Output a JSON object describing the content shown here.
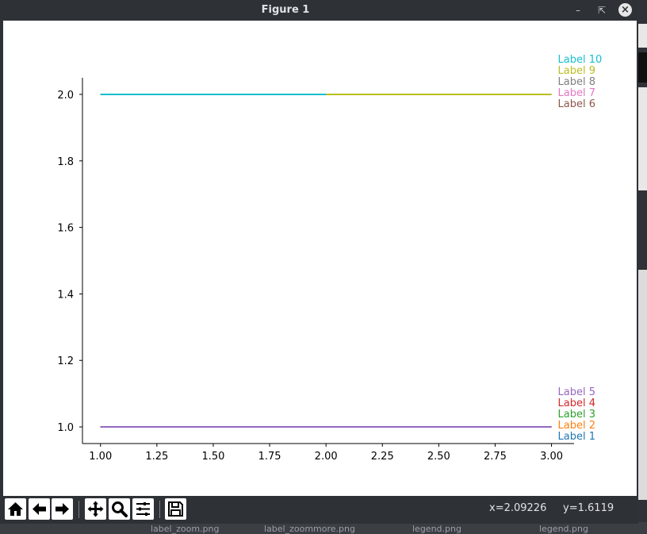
{
  "window": {
    "title": "Figure 1"
  },
  "toolbar": {
    "buttons": [
      "home-icon",
      "back-icon",
      "forward-icon",
      "pan-icon",
      "zoom-icon",
      "configure-subplots-icon",
      "save-icon"
    ],
    "coords_x": "x=2.09226",
    "coords_y": "y=1.6119"
  },
  "background": {
    "taskbar_labels": [
      "label_zoom.png",
      "label_zoommore.png",
      "legend.png",
      "legend.png"
    ]
  },
  "chart_data": {
    "type": "line",
    "title": "",
    "xlabel": "",
    "ylabel": "",
    "xlim": [
      0.92,
      3.1
    ],
    "ylim": [
      0.95,
      2.05
    ],
    "xticks": [
      "1.00",
      "1.25",
      "1.50",
      "1.75",
      "2.00",
      "2.25",
      "2.50",
      "2.75",
      "3.00"
    ],
    "yticks": [
      "1.0",
      "1.2",
      "1.4",
      "1.6",
      "1.8",
      "2.0"
    ],
    "grid": false,
    "series": [
      {
        "name": "Label 1",
        "color": "#1f77b4",
        "x": [
          1,
          2,
          3
        ],
        "y": [
          1,
          1,
          1
        ]
      },
      {
        "name": "Label 2",
        "color": "#ff7f0e",
        "x": [
          1,
          2,
          3
        ],
        "y": [
          1,
          1,
          1
        ]
      },
      {
        "name": "Label 3",
        "color": "#2ca02c",
        "x": [
          1,
          2,
          3
        ],
        "y": [
          1,
          1,
          1
        ]
      },
      {
        "name": "Label 4",
        "color": "#d62728",
        "x": [
          1,
          2,
          3
        ],
        "y": [
          1,
          1,
          1
        ]
      },
      {
        "name": "Label 5",
        "color": "#9467bd",
        "x": [
          1,
          2,
          3
        ],
        "y": [
          1,
          1,
          1
        ]
      },
      {
        "name": "Label 6",
        "color": "#8c564b",
        "x": [
          1,
          2,
          3
        ],
        "y": [
          2,
          2,
          2
        ]
      },
      {
        "name": "Label 7",
        "color": "#e377c2",
        "x": [
          1,
          2,
          3
        ],
        "y": [
          2,
          2,
          2
        ]
      },
      {
        "name": "Label 8",
        "color": "#7f7f7f",
        "x": [
          1,
          2,
          3
        ],
        "y": [
          2,
          2,
          2
        ]
      },
      {
        "name": "Label 9",
        "color": "#bcbd22",
        "x": [
          2,
          3
        ],
        "y": [
          2,
          2
        ]
      },
      {
        "name": "Label 10",
        "color": "#17becf",
        "x": [
          1,
          2
        ],
        "y": [
          2,
          2
        ]
      }
    ]
  }
}
